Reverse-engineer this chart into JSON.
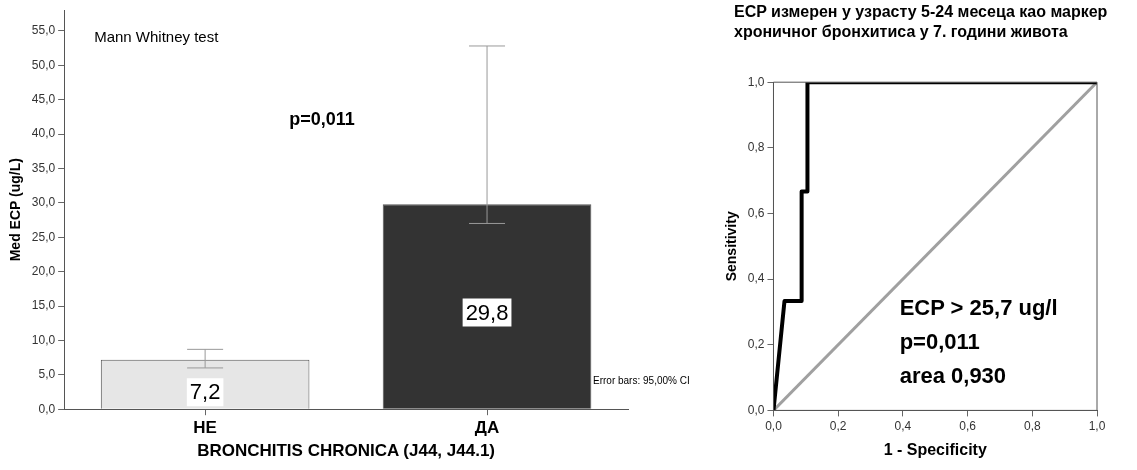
{
  "chart_data": [
    {
      "type": "bar",
      "xlabel": "BRONCHITIS CHRONICA (J44, J44.1)",
      "ylabel": "Med ECP (ug/L)",
      "categories": [
        "НЕ",
        "ДА"
      ],
      "values": [
        7.2,
        29.8
      ],
      "colors": [
        "#e6e6e6",
        "#333333"
      ],
      "value_labels": [
        "7,2",
        "29,8"
      ],
      "errors": [
        [
          6.0,
          8.7
        ],
        [
          27.0,
          52.8
        ]
      ],
      "ylim": [
        0,
        58
      ],
      "yticks": [
        {
          "value": 0,
          "label": "0,0"
        },
        {
          "value": 5,
          "label": "5,0"
        },
        {
          "value": 10,
          "label": "10,0"
        },
        {
          "value": 15,
          "label": "15,0"
        },
        {
          "value": 20,
          "label": "20,0"
        },
        {
          "value": 25,
          "label": "25,0"
        },
        {
          "value": 30,
          "label": "30,0"
        },
        {
          "value": 35,
          "label": "35,0"
        },
        {
          "value": 40,
          "label": "40,0"
        },
        {
          "value": 45,
          "label": "45,0"
        },
        {
          "value": 50,
          "label": "50,0"
        },
        {
          "value": 55,
          "label": "55,0"
        }
      ],
      "annotations": [
        "Mann Whitney test",
        "p=0,011",
        "Error bars: 95,00% CI"
      ],
      "grid": false,
      "legend": false
    },
    {
      "type": "line",
      "title": "ECP измерен у узрасту 5-24 месеца као маркер хроничног бронхитиса у 7. години живота",
      "xlabel": "1 - Specificity",
      "ylabel": "Sensitivity",
      "series": [
        {
          "color": "#000000",
          "x": [
            0,
            0.034,
            0.087,
            0.087,
            0.105,
            0.105,
            1
          ],
          "values": [
            0,
            0.333,
            0.333,
            0.667,
            0.667,
            1,
            1
          ]
        },
        {
          "color": "#a0a0a0",
          "x": [
            0,
            1
          ],
          "values": [
            0,
            1
          ]
        }
      ],
      "xlim": [
        0,
        1
      ],
      "ylim": [
        0,
        1
      ],
      "xticks": [
        {
          "value": 0,
          "label": "0,0"
        },
        {
          "value": 0.2,
          "label": "0,2"
        },
        {
          "value": 0.4,
          "label": "0,4"
        },
        {
          "value": 0.6,
          "label": "0,6"
        },
        {
          "value": 0.8,
          "label": "0,8"
        },
        {
          "value": 1,
          "label": "1,0"
        }
      ],
      "yticks": [
        {
          "value": 0,
          "label": "0,0"
        },
        {
          "value": 0.2,
          "label": "0,2"
        },
        {
          "value": 0.4,
          "label": "0,4"
        },
        {
          "value": 0.6,
          "label": "0,6"
        },
        {
          "value": 0.8,
          "label": "0,8"
        },
        {
          "value": 1,
          "label": "1,0"
        }
      ],
      "annotations": [
        "ECP > 25,7 ug/l",
        "p=0,011",
        "area 0,930"
      ],
      "marker": "none",
      "line_style": "solid",
      "grid": false,
      "legend": false
    }
  ]
}
